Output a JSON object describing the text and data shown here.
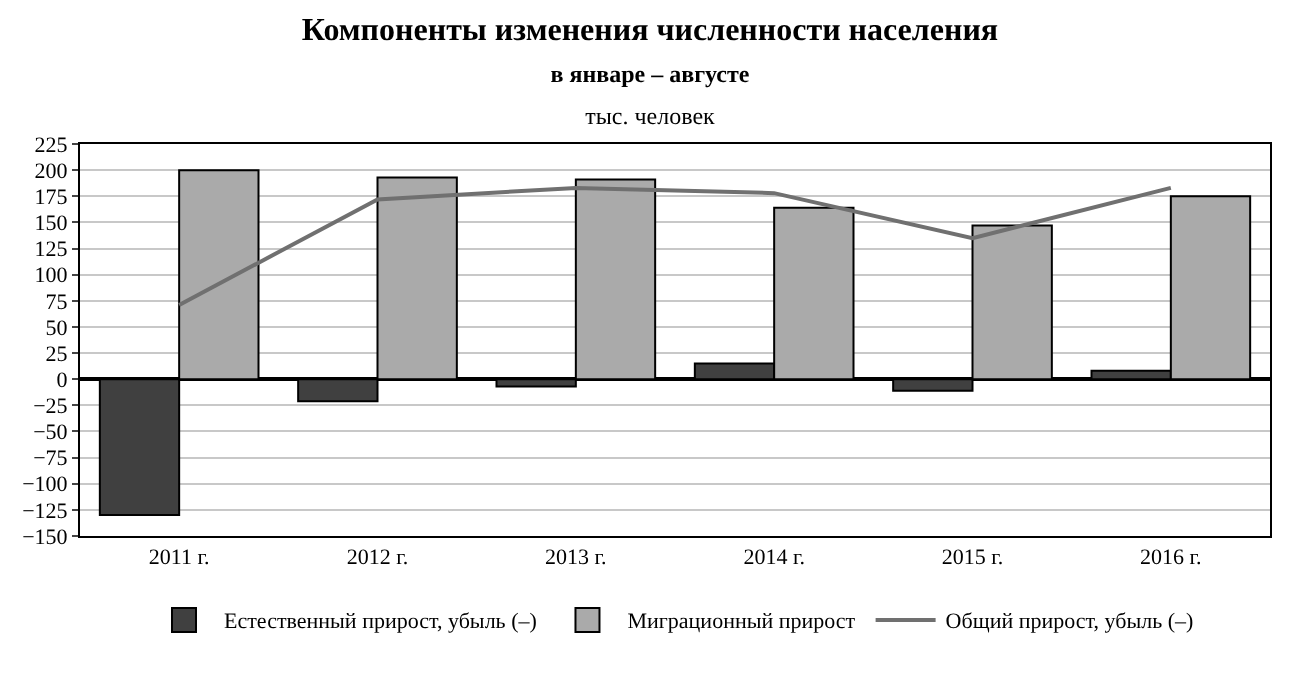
{
  "chart_data": {
    "type": "bar",
    "title": "Компоненты изменения численности населения",
    "subtitle": "в январе – августе",
    "ylabel": "тыс. человек",
    "categories": [
      "2011 г.",
      "2012 г.",
      "2013 г.",
      "2014 г.",
      "2015 г.",
      "2016 г."
    ],
    "series": [
      {
        "name": "Естественный прирост, убыль (–)",
        "color": "#404040",
        "values": [
          -130,
          -21,
          -7,
          15,
          -11,
          8
        ]
      },
      {
        "name": "Миграционный прирост",
        "color": "#aaaaaa",
        "values": [
          200,
          193,
          191,
          164,
          147,
          175
        ]
      },
      {
        "name": "Общий прирост, убыль (–)",
        "type": "line",
        "color": "#707070",
        "values": [
          71,
          172,
          183,
          178,
          135,
          183
        ]
      }
    ],
    "ylim": [
      -150,
      225
    ],
    "yticks": [
      -150,
      -125,
      -100,
      -75,
      -50,
      -25,
      0,
      25,
      50,
      75,
      100,
      125,
      150,
      175,
      200,
      225
    ],
    "grid": "y",
    "legend": "bottom",
    "marker": "none",
    "line_style": "solid"
  }
}
